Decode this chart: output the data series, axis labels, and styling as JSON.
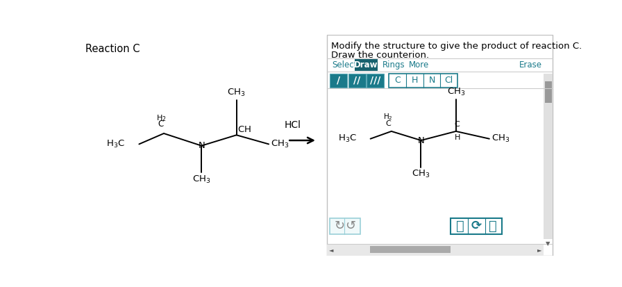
{
  "title": "Reaction C",
  "bg_color": "#ffffff",
  "teal_color": "#1a7a8a",
  "dark_teal": "#17616e",
  "instruction_line1": "Modify the structure to give the product of reaction C.",
  "instruction_line2": "Draw the counterion.",
  "toolbar_labels": [
    "Select",
    "Draw",
    "Rings",
    "More",
    "Erase"
  ],
  "atom_labels": [
    "C",
    "H",
    "N",
    "Cl"
  ],
  "bond_symbols": [
    "/",
    "//",
    "///"
  ]
}
